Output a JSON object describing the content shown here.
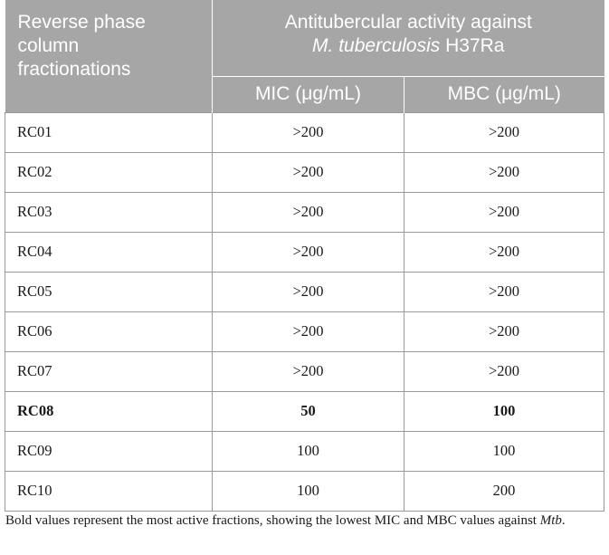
{
  "header": {
    "row_header_lines": [
      "Reverse phase",
      "column",
      "fractionations"
    ],
    "group_line1": "Antitubercular activity against",
    "group_line2_italic": "M. tuberculosis",
    "group_line2_rest": " H37Ra",
    "col_mic": "MIC (μg/mL)",
    "col_mbc": "MBC (μg/mL)"
  },
  "rows": [
    {
      "name": "RC01",
      "mic": ">200",
      "mbc": ">200",
      "bold": false
    },
    {
      "name": "RC02",
      "mic": ">200",
      "mbc": ">200",
      "bold": false
    },
    {
      "name": "RC03",
      "mic": ">200",
      "mbc": ">200",
      "bold": false
    },
    {
      "name": "RC04",
      "mic": ">200",
      "mbc": ">200",
      "bold": false
    },
    {
      "name": "RC05",
      "mic": ">200",
      "mbc": ">200",
      "bold": false
    },
    {
      "name": "RC06",
      "mic": ">200",
      "mbc": ">200",
      "bold": false
    },
    {
      "name": "RC07",
      "mic": ">200",
      "mbc": ">200",
      "bold": false
    },
    {
      "name": "RC08",
      "mic": "50",
      "mbc": "100",
      "bold": true
    },
    {
      "name": "RC09",
      "mic": "100",
      "mbc": "100",
      "bold": false
    },
    {
      "name": "RC10",
      "mic": "100",
      "mbc": "200",
      "bold": false
    }
  ],
  "footnote": {
    "text": "Bold values represent the most active fractions, showing the lowest MIC and MBC values against ",
    "italic_tail": "Mtb",
    "end": "."
  },
  "colors": {
    "header_bg": "#a6a6a6",
    "header_text": "#ffffff",
    "grid_line": "#9a9a9a"
  }
}
